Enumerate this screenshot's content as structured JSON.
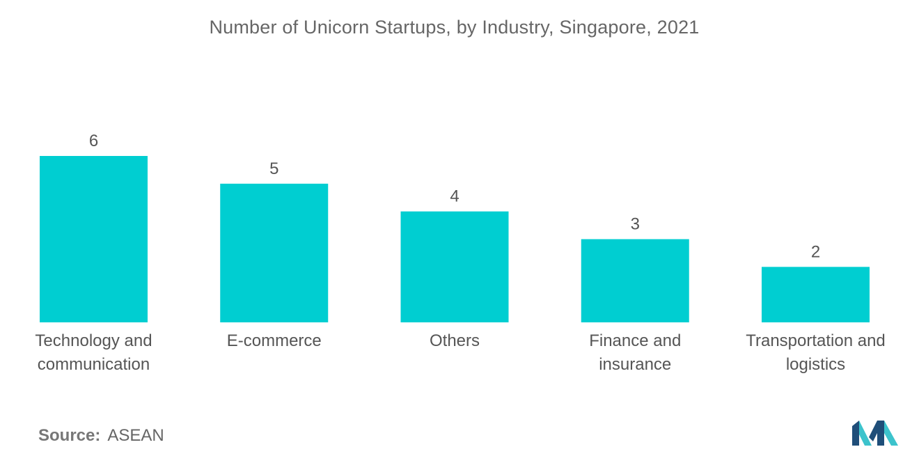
{
  "chart_data": {
    "type": "bar",
    "title": "Number of Unicorn Startups, by Industry, Singapore, 2021",
    "categories": [
      [
        "Technology and",
        "communication"
      ],
      [
        "E-commerce"
      ],
      [
        "Others"
      ],
      [
        "Finance and",
        "insurance"
      ],
      [
        "Transportation and",
        "logistics"
      ]
    ],
    "values": [
      6,
      5,
      4,
      3,
      2
    ],
    "xlabel": "",
    "ylabel": "",
    "ylim": [
      0,
      6
    ],
    "grid": false,
    "legend": "none",
    "bar_color": "#00ced1"
  },
  "source": {
    "label": "Source:",
    "value": "ASEAN"
  },
  "colors": {
    "bar": "#00ced1",
    "logo_dark": "#1f4e79",
    "logo_light": "#3cc3cc"
  }
}
